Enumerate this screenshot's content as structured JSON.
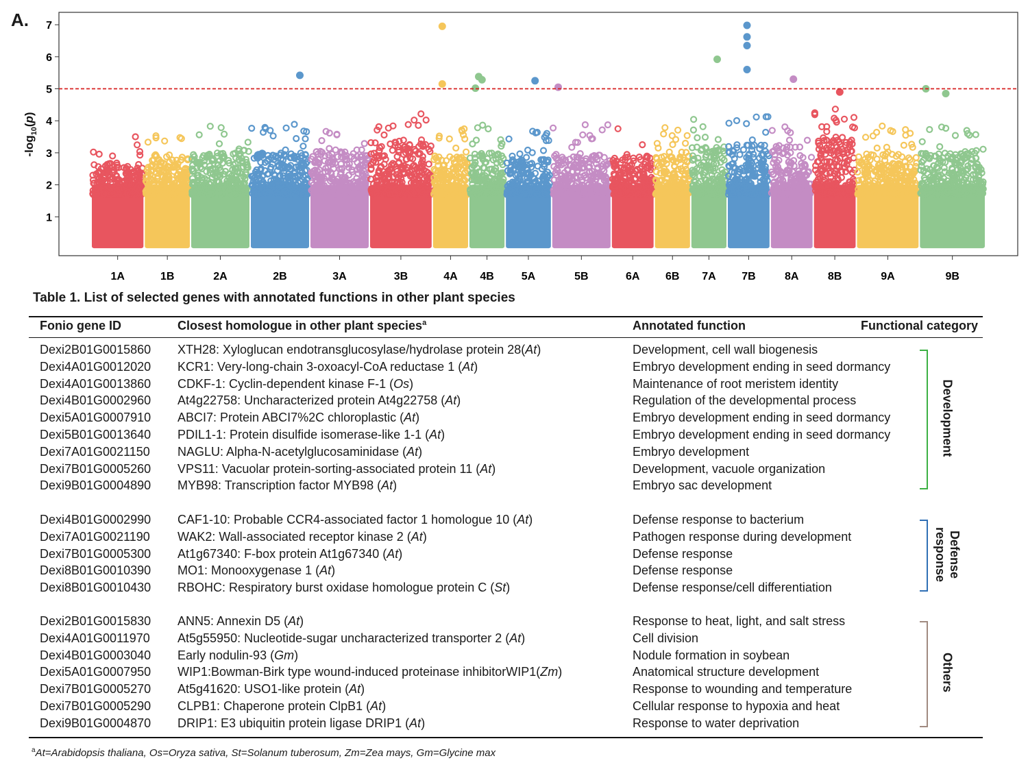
{
  "panel_label": "A.",
  "chart_data": {
    "type": "scatter",
    "subtype": "manhattan",
    "title": "",
    "xlabel": "",
    "ylabel": "-log10(p)",
    "ylabel_parts": {
      "base": "-log",
      "sub": "10",
      "open": "(",
      "var": "p",
      "close": ")"
    },
    "ylim": [
      0,
      7.3
    ],
    "yticks": [
      1,
      2,
      3,
      4,
      5,
      6,
      7
    ],
    "threshold": 5,
    "threshold_color": "#d62020",
    "palette": [
      "#e8555f",
      "#f5c65a",
      "#8fc78f",
      "#5b97cc",
      "#c48cc4"
    ],
    "chromosomes": [
      "1A",
      "1B",
      "2A",
      "2B",
      "3A",
      "3B",
      "4A",
      "4B",
      "5A",
      "5B",
      "6A",
      "6B",
      "7A",
      "7B",
      "8A",
      "8B",
      "9A",
      "9B"
    ],
    "chrom_spans": [
      [
        0.0,
        16.0
      ],
      [
        16.0,
        30.0
      ],
      [
        30.0,
        48.0
      ],
      [
        48.0,
        66.0
      ],
      [
        66.0,
        84.0
      ],
      [
        84.0,
        103.0
      ],
      [
        103.0,
        114.0
      ],
      [
        114.0,
        125.0
      ],
      [
        125.0,
        139.0
      ],
      [
        139.0,
        157.0
      ],
      [
        157.0,
        170.0
      ],
      [
        170.0,
        181.0
      ],
      [
        181.0,
        192.0
      ],
      [
        192.0,
        205.0
      ],
      [
        205.0,
        218.0
      ],
      [
        218.0,
        231.0
      ],
      [
        231.0,
        250.0
      ],
      [
        250.0,
        270.0
      ]
    ],
    "chrom_max_bulk": [
      2.7,
      2.9,
      3.0,
      3.0,
      3.1,
      3.4,
      2.9,
      3.0,
      2.8,
      3.0,
      2.9,
      2.9,
      3.2,
      3.3,
      3.2,
      3.5,
      3.0,
      3.0
    ],
    "top_hits": [
      {
        "chrom": "4A",
        "pos": 106.0,
        "value": 6.95
      },
      {
        "chrom": "4A",
        "pos": 106.0,
        "value": 5.15
      },
      {
        "chrom": "2B",
        "pos": 63.0,
        "value": 5.42
      },
      {
        "chrom": "4B",
        "pos": 117.0,
        "value": 5.38
      },
      {
        "chrom": "4B",
        "pos": 118.0,
        "value": 5.28
      },
      {
        "chrom": "4B",
        "pos": 116.0,
        "value": 5.02
      },
      {
        "chrom": "5A",
        "pos": 134.0,
        "value": 5.25
      },
      {
        "chrom": "5B",
        "pos": 141.0,
        "value": 5.05
      },
      {
        "chrom": "7A",
        "pos": 189.0,
        "value": 5.92
      },
      {
        "chrom": "7B",
        "pos": 198.0,
        "value": 6.98
      },
      {
        "chrom": "7B",
        "pos": 198.0,
        "value": 6.62
      },
      {
        "chrom": "7B",
        "pos": 198.0,
        "value": 6.35
      },
      {
        "chrom": "7B",
        "pos": 198.0,
        "value": 5.6
      },
      {
        "chrom": "8A",
        "pos": 212.0,
        "value": 5.3
      },
      {
        "chrom": "8B",
        "pos": 226.0,
        "value": 4.9
      },
      {
        "chrom": "9B",
        "pos": 252.0,
        "value": 5.0
      },
      {
        "chrom": "9B",
        "pos": 258.0,
        "value": 4.85
      }
    ]
  },
  "table": {
    "title": "Table 1. List of selected genes with annotated functions in other plant species",
    "headers": {
      "id": "Fonio gene ID",
      "homologue": "Closest homologue in other plant species",
      "homologue_sup": "a",
      "function": "Annotated function",
      "category": "Functional category"
    },
    "groups": [
      {
        "category": "Development",
        "category_lines": [
          "Development"
        ],
        "color": "#3cb043",
        "rows": [
          {
            "id": "Dexi2B01G0015860",
            "hom": "XTH28: Xyloglucan endotransglucosylase/hydrolase protein 28(",
            "sp": "At",
            "fn": "Development, cell wall biogenesis"
          },
          {
            "id": "Dexi4A01G0012020",
            "hom": "KCR1: Very-long-chain 3-oxoacyl-CoA reductase 1 (",
            "sp": "At",
            "fn": "Embryo development ending in seed dormancy"
          },
          {
            "id": "Dexi4A01G0013860",
            "hom": "CDKF-1: Cyclin-dependent kinase F-1 (",
            "sp": "Os",
            "fn": "Maintenance of root meristem identity"
          },
          {
            "id": "Dexi4B01G0002960",
            "hom": "At4g22758: Uncharacterized protein At4g22758 (",
            "sp": "At",
            "fn": "Regulation of the developmental process"
          },
          {
            "id": "Dexi5A01G0007910",
            "hom": "ABCI7: Protein ABCI7%2C chloroplastic (",
            "sp": "At",
            "fn": "Embryo development ending in seed dormancy"
          },
          {
            "id": "Dexi5B01G0013640",
            "hom": "PDIL1-1: Protein disulfide isomerase-like 1-1 (",
            "sp": "At",
            "fn": "Embryo development ending in seed dormancy"
          },
          {
            "id": "Dexi7A01G0021150",
            "hom": "NAGLU: Alpha-N-acetylglucosaminidase (",
            "sp": "At",
            "fn": "Embryo development"
          },
          {
            "id": "Dexi7B01G0005260",
            "hom": "VPS11: Vacuolar protein-sorting-associated protein 11 (",
            "sp": "At",
            "fn": "Development, vacuole organization"
          },
          {
            "id": "Dexi9B01G0004890",
            "hom": "MYB98: Transcription factor MYB98 (",
            "sp": "At",
            "fn": "Embryo sac development"
          }
        ]
      },
      {
        "category": "Defense response",
        "category_lines": [
          "Defense",
          "response"
        ],
        "color": "#2f6fb5",
        "rows": [
          {
            "id": "Dexi4B01G0002990",
            "hom": "CAF1-10: Probable CCR4-associated factor 1 homologue 10 (",
            "sp": "At",
            "fn": "Defense response to bacterium"
          },
          {
            "id": "Dexi7A01G0021190",
            "hom": "WAK2: Wall-associated receptor kinase 2 (",
            "sp": "At",
            "fn": "Pathogen response during development"
          },
          {
            "id": "Dexi7B01G0005300",
            "hom": "At1g67340: F-box protein At1g67340 (",
            "sp": "At",
            "fn": "Defense response"
          },
          {
            "id": "Dexi8B01G0010390",
            "hom": "MO1: Monooxygenase 1 (",
            "sp": "At",
            "fn": "Defense response"
          },
          {
            "id": "Dexi8B01G0010430",
            "hom": "RBOHC: Respiratory burst oxidase homologue protein C (",
            "sp": "St",
            "fn": "Defense response/cell differentiation"
          }
        ]
      },
      {
        "category": "Others",
        "category_lines": [
          "Others"
        ],
        "color": "#a08a80",
        "rows": [
          {
            "id": "Dexi2B01G0015830",
            "hom": "ANN5: Annexin D5 (",
            "sp": "At",
            "fn": "Response to heat, light, and salt stress"
          },
          {
            "id": "Dexi4A01G0011970",
            "hom": "At5g55950: Nucleotide-sugar uncharacterized transporter 2 (",
            "sp": "At",
            "fn": "Cell division"
          },
          {
            "id": "Dexi4B01G0003040",
            "hom": "Early nodulin-93 (",
            "sp": "Gm",
            "fn": "Nodule formation in soybean"
          },
          {
            "id": "Dexi5A01G0007950",
            "hom": "WIP1:Bowman-Birk type wound-induced proteinase inhibitorWIP1(",
            "sp": "Zm",
            "fn": "Anatomical structure development"
          },
          {
            "id": "Dexi7B01G0005270",
            "hom": "At5g41620: USO1-like protein (",
            "sp": "At",
            "fn": "Response to wounding and temperature"
          },
          {
            "id": "Dexi7B01G0005290",
            "hom": "CLPB1: Chaperone protein ClpB1 (",
            "sp": "At",
            "fn": "Cellular response to hypoxia and heat"
          },
          {
            "id": "Dexi9B01G0004870",
            "hom": "DRIP1: E3 ubiquitin protein ligase DRIP1 (",
            "sp": "At",
            "fn": "Response to water deprivation"
          }
        ]
      }
    ],
    "footnote_mark": "a",
    "footnote": "At=Arabidopsis thaliana, Os=Oryza sativa, St=Solanum tuberosum, Zm=Zea mays, Gm=Glycine max"
  }
}
